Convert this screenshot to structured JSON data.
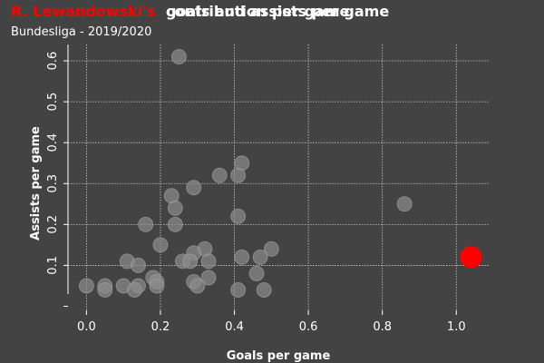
{
  "chart_data": {
    "type": "scatter",
    "title_highlight": "R. Lewandowski's",
    "title_rest": "goals and assists per game",
    "title_overlay": "contribution per game",
    "subtitle": "Bundesliga - 2019/2020",
    "xlabel": "Goals per game",
    "ylabel": "Assists per game",
    "xlim": [
      -0.05,
      1.09
    ],
    "ylim": [
      -0.01,
      0.64
    ],
    "xticks": [
      "0.0",
      "0.2",
      "0.4",
      "0.6",
      "0.8",
      "1.0"
    ],
    "xtick_values": [
      0.0,
      0.2,
      0.4,
      0.6,
      0.8,
      1.0
    ],
    "yticks": [
      "0.1",
      "0.2",
      "0.3",
      "0.4",
      "0.5",
      "0.6"
    ],
    "ytick_values": [
      0.1,
      0.2,
      0.3,
      0.4,
      0.5,
      0.6
    ],
    "grid": true,
    "colors": {
      "background": "#434343",
      "others": "#8c8c8c",
      "highlight": "#ff0000"
    },
    "series": [
      {
        "values": [
          {
            "x": 0.25,
            "y": 0.61
          },
          {
            "x": 0.86,
            "y": 0.25
          },
          {
            "x": 0.42,
            "y": 0.35
          },
          {
            "x": 0.36,
            "y": 0.32
          },
          {
            "x": 0.41,
            "y": 0.32
          },
          {
            "x": 0.29,
            "y": 0.29
          },
          {
            "x": 0.23,
            "y": 0.27
          },
          {
            "x": 0.24,
            "y": 0.24
          },
          {
            "x": 0.41,
            "y": 0.22
          },
          {
            "x": 0.16,
            "y": 0.2
          },
          {
            "x": 0.24,
            "y": 0.2
          },
          {
            "x": 0.2,
            "y": 0.15
          },
          {
            "x": 0.5,
            "y": 0.14
          },
          {
            "x": 0.32,
            "y": 0.14
          },
          {
            "x": 0.29,
            "y": 0.13
          },
          {
            "x": 0.42,
            "y": 0.12
          },
          {
            "x": 0.47,
            "y": 0.12
          },
          {
            "x": 0.11,
            "y": 0.11
          },
          {
            "x": 0.26,
            "y": 0.11
          },
          {
            "x": 0.28,
            "y": 0.11
          },
          {
            "x": 0.33,
            "y": 0.11
          },
          {
            "x": 0.14,
            "y": 0.1
          },
          {
            "x": 0.46,
            "y": 0.08
          },
          {
            "x": 0.18,
            "y": 0.07
          },
          {
            "x": 0.33,
            "y": 0.07
          },
          {
            "x": 0.29,
            "y": 0.06
          },
          {
            "x": 0.19,
            "y": 0.06
          },
          {
            "x": 0.0,
            "y": 0.05
          },
          {
            "x": 0.05,
            "y": 0.05
          },
          {
            "x": 0.1,
            "y": 0.05
          },
          {
            "x": 0.14,
            "y": 0.05
          },
          {
            "x": 0.19,
            "y": 0.05
          },
          {
            "x": 0.3,
            "y": 0.05
          },
          {
            "x": 0.13,
            "y": 0.04
          },
          {
            "x": 0.41,
            "y": 0.04
          },
          {
            "x": 0.48,
            "y": 0.04
          },
          {
            "x": 0.05,
            "y": 0.04
          }
        ]
      },
      {
        "highlight": true,
        "values": [
          {
            "x": 1.04,
            "y": 0.12
          }
        ]
      }
    ]
  }
}
